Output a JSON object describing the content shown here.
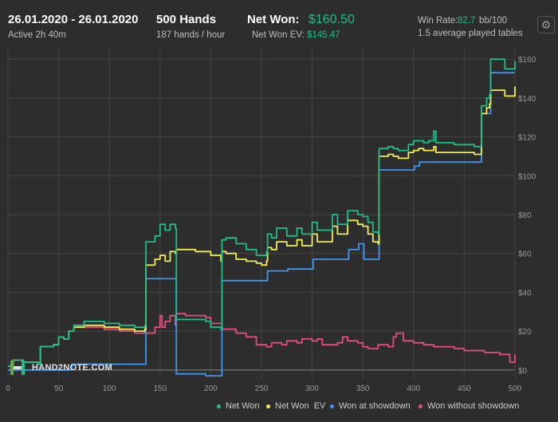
{
  "header": {
    "date_range": "26.01.2020 - 26.01.2020",
    "active": "Active 2h 40m",
    "hands": "500 Hands",
    "hands_rate": "187 hands / hour",
    "net_won_label": "Net Won:",
    "net_won_value": "$160.50",
    "net_won_ev_label": "Net Won  EV:",
    "net_won_ev_value": "$145.47",
    "win_rate_label": "Win Rate:",
    "win_rate_value": "82.7",
    "win_rate_unit": "bb/100",
    "tables": "1.5 average played tables"
  },
  "logo_text": "HAND2NOTE.COM",
  "settings_icon": "gear-icon",
  "colors": {
    "background": "#2d2d2d",
    "grid": "#444444",
    "net_won": "#1fbe86",
    "net_won_ev": "#f2ee52",
    "showdown": "#3d96f0",
    "non_showdown": "#e84d7d"
  },
  "chart_data": {
    "type": "line",
    "xlim": [
      0,
      500
    ],
    "ylim": [
      -5,
      165
    ],
    "x_ticks": [
      "0",
      "50",
      "100",
      "150",
      "200",
      "250",
      "300",
      "350",
      "400",
      "450",
      "500"
    ],
    "y_ticks": [
      "$0",
      "$20",
      "$40",
      "$60",
      "$80",
      "$100",
      "$120",
      "$140",
      "$160"
    ],
    "y_tick_values": [
      0,
      20,
      40,
      60,
      80,
      100,
      120,
      140,
      160
    ],
    "legend_position": "bottom-right",
    "grid": true,
    "series": [
      {
        "name": "Net Won",
        "color": "#1fbe86",
        "points": [
          [
            0,
            2
          ],
          [
            5,
            5
          ],
          [
            15,
            4
          ],
          [
            30,
            3
          ],
          [
            32,
            12
          ],
          [
            45,
            13
          ],
          [
            50,
            17
          ],
          [
            55,
            16
          ],
          [
            60,
            20
          ],
          [
            65,
            23
          ],
          [
            75,
            25
          ],
          [
            95,
            24
          ],
          [
            110,
            23
          ],
          [
            125,
            22
          ],
          [
            135,
            23
          ],
          [
            136,
            66
          ],
          [
            145,
            69
          ],
          [
            150,
            75
          ],
          [
            155,
            72
          ],
          [
            160,
            75
          ],
          [
            165,
            73
          ],
          [
            166,
            26
          ],
          [
            185,
            26
          ],
          [
            195,
            25
          ],
          [
            200,
            22
          ],
          [
            210,
            21
          ],
          [
            211,
            67
          ],
          [
            215,
            68
          ],
          [
            225,
            65
          ],
          [
            235,
            62
          ],
          [
            245,
            59
          ],
          [
            250,
            59
          ],
          [
            255,
            61
          ],
          [
            256,
            70
          ],
          [
            260,
            68
          ],
          [
            265,
            73
          ],
          [
            275,
            69
          ],
          [
            285,
            73
          ],
          [
            290,
            70
          ],
          [
            300,
            76
          ],
          [
            305,
            72
          ],
          [
            320,
            80
          ],
          [
            325,
            75
          ],
          [
            335,
            82
          ],
          [
            345,
            80
          ],
          [
            350,
            79
          ],
          [
            355,
            76
          ],
          [
            360,
            71
          ],
          [
            365,
            70
          ],
          [
            366,
            114
          ],
          [
            375,
            115
          ],
          [
            380,
            114
          ],
          [
            385,
            113
          ],
          [
            395,
            116
          ],
          [
            400,
            118
          ],
          [
            405,
            118
          ],
          [
            410,
            117
          ],
          [
            415,
            118
          ],
          [
            420,
            123
          ],
          [
            422,
            117
          ],
          [
            440,
            116
          ],
          [
            460,
            115
          ],
          [
            466,
            115
          ],
          [
            467,
            136
          ],
          [
            472,
            140
          ],
          [
            475,
            142
          ],
          [
            476,
            160
          ],
          [
            485,
            160
          ],
          [
            490,
            155
          ],
          [
            496,
            155
          ],
          [
            500,
            159
          ]
        ]
      },
      {
        "name": "Net Won  EV",
        "color": "#f2ee52",
        "points": [
          [
            0,
            2
          ],
          [
            5,
            5
          ],
          [
            15,
            4
          ],
          [
            30,
            3
          ],
          [
            32,
            12
          ],
          [
            45,
            13
          ],
          [
            50,
            17
          ],
          [
            55,
            16
          ],
          [
            60,
            20
          ],
          [
            65,
            22
          ],
          [
            75,
            23
          ],
          [
            95,
            22
          ],
          [
            110,
            21
          ],
          [
            125,
            20
          ],
          [
            135,
            21
          ],
          [
            136,
            54
          ],
          [
            145,
            57
          ],
          [
            150,
            59
          ],
          [
            155,
            56
          ],
          [
            160,
            61
          ],
          [
            165,
            60
          ],
          [
            166,
            62
          ],
          [
            185,
            61
          ],
          [
            195,
            61
          ],
          [
            200,
            59
          ],
          [
            210,
            56
          ],
          [
            211,
            61
          ],
          [
            215,
            60
          ],
          [
            225,
            57
          ],
          [
            235,
            56
          ],
          [
            245,
            55
          ],
          [
            250,
            54
          ],
          [
            255,
            56
          ],
          [
            256,
            63
          ],
          [
            260,
            62
          ],
          [
            265,
            66
          ],
          [
            275,
            64
          ],
          [
            285,
            67
          ],
          [
            290,
            64
          ],
          [
            300,
            70
          ],
          [
            305,
            66
          ],
          [
            320,
            74
          ],
          [
            325,
            70
          ],
          [
            335,
            77
          ],
          [
            345,
            75
          ],
          [
            350,
            74
          ],
          [
            355,
            70
          ],
          [
            360,
            66
          ],
          [
            365,
            65
          ],
          [
            366,
            110
          ],
          [
            375,
            111
          ],
          [
            380,
            110
          ],
          [
            385,
            109
          ],
          [
            395,
            112
          ],
          [
            400,
            113
          ],
          [
            405,
            114
          ],
          [
            410,
            113
          ],
          [
            415,
            113
          ],
          [
            420,
            115
          ],
          [
            422,
            112
          ],
          [
            440,
            112
          ],
          [
            460,
            111
          ],
          [
            466,
            111
          ],
          [
            467,
            132
          ],
          [
            472,
            135
          ],
          [
            475,
            137
          ],
          [
            476,
            144
          ],
          [
            485,
            144
          ],
          [
            490,
            141
          ],
          [
            496,
            141
          ],
          [
            500,
            146
          ]
        ]
      },
      {
        "name": "Won at showdown",
        "color": "#3d96f0",
        "points": [
          [
            0,
            0
          ],
          [
            62,
            0
          ],
          [
            63,
            3
          ],
          [
            135,
            3
          ],
          [
            136,
            47
          ],
          [
            165,
            47
          ],
          [
            166,
            -2
          ],
          [
            185,
            -2
          ],
          [
            195,
            -3
          ],
          [
            210,
            -3
          ],
          [
            211,
            46
          ],
          [
            255,
            46
          ],
          [
            256,
            51
          ],
          [
            275,
            51
          ],
          [
            276,
            52
          ],
          [
            300,
            52
          ],
          [
            301,
            57
          ],
          [
            335,
            57
          ],
          [
            336,
            62
          ],
          [
            345,
            62
          ],
          [
            346,
            65
          ],
          [
            350,
            65
          ],
          [
            351,
            57
          ],
          [
            365,
            57
          ],
          [
            366,
            103
          ],
          [
            400,
            103
          ],
          [
            401,
            105
          ],
          [
            405,
            105
          ],
          [
            406,
            107
          ],
          [
            466,
            107
          ],
          [
            467,
            132
          ],
          [
            472,
            132
          ],
          [
            476,
            153
          ],
          [
            500,
            153
          ]
        ]
      },
      {
        "name": "Won without showdown",
        "color": "#e84d7d",
        "points": [
          [
            0,
            2
          ],
          [
            5,
            5
          ],
          [
            15,
            4
          ],
          [
            30,
            3
          ],
          [
            32,
            12
          ],
          [
            45,
            13
          ],
          [
            50,
            17
          ],
          [
            55,
            16
          ],
          [
            60,
            20
          ],
          [
            62,
            20
          ],
          [
            65,
            23
          ],
          [
            75,
            22
          ],
          [
            95,
            21
          ],
          [
            110,
            20
          ],
          [
            125,
            19
          ],
          [
            135,
            20
          ],
          [
            136,
            19
          ],
          [
            145,
            22
          ],
          [
            150,
            28
          ],
          [
            152,
            22
          ],
          [
            155,
            25
          ],
          [
            160,
            28
          ],
          [
            165,
            23
          ],
          [
            166,
            29
          ],
          [
            175,
            28
          ],
          [
            185,
            28
          ],
          [
            195,
            27
          ],
          [
            200,
            24
          ],
          [
            210,
            24
          ],
          [
            211,
            21
          ],
          [
            225,
            19
          ],
          [
            235,
            17
          ],
          [
            240,
            17
          ],
          [
            245,
            13
          ],
          [
            255,
            12
          ],
          [
            260,
            14
          ],
          [
            270,
            13
          ],
          [
            275,
            15
          ],
          [
            285,
            14
          ],
          [
            290,
            16
          ],
          [
            300,
            15
          ],
          [
            305,
            16
          ],
          [
            310,
            13
          ],
          [
            320,
            13
          ],
          [
            325,
            14
          ],
          [
            330,
            17
          ],
          [
            335,
            15
          ],
          [
            340,
            15
          ],
          [
            345,
            14
          ],
          [
            350,
            12
          ],
          [
            355,
            11
          ],
          [
            365,
            13
          ],
          [
            370,
            13
          ],
          [
            375,
            12
          ],
          [
            380,
            17
          ],
          [
            383,
            19
          ],
          [
            390,
            15
          ],
          [
            400,
            14
          ],
          [
            410,
            13
          ],
          [
            420,
            12
          ],
          [
            430,
            12
          ],
          [
            440,
            11
          ],
          [
            450,
            10
          ],
          [
            460,
            10
          ],
          [
            470,
            9
          ],
          [
            480,
            9
          ],
          [
            485,
            8
          ],
          [
            490,
            8
          ],
          [
            495,
            4
          ],
          [
            500,
            8
          ]
        ]
      }
    ]
  }
}
